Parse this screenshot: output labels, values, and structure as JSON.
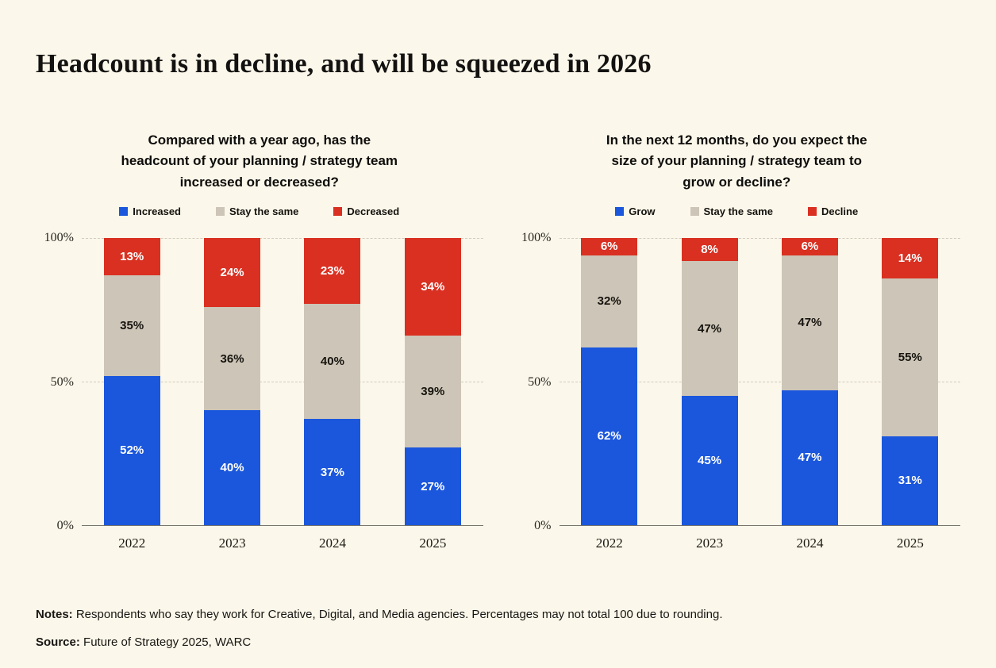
{
  "page": {
    "title": "Headcount is in decline, and will be squeezed in 2026",
    "notes_label": "Notes:",
    "notes_text": "Respondents who say they work for Creative, Digital, and Media agencies. Percentages may not total 100 due to rounding.",
    "source_label": "Source:",
    "source_text": "Future of Strategy 2025, WARC"
  },
  "colors": {
    "background": "#fbf7ea",
    "blue": "#1b57dd",
    "gray": "#cdc5b7",
    "red": "#d93021",
    "grid": "#d2ccbe",
    "baseline": "#76736a"
  },
  "chart_data": [
    {
      "type": "bar",
      "stacked": true,
      "title": "Compared with a year ago, has the headcount of your planning / strategy team increased or decreased?",
      "title_lines": [
        "Compared with a year ago, has the",
        "headcount of your planning / strategy team",
        "increased or decreased?"
      ],
      "categories": [
        "2022",
        "2023",
        "2024",
        "2025"
      ],
      "series": [
        {
          "name": "Increased",
          "color_key": "blue",
          "values": [
            52,
            40,
            37,
            27
          ]
        },
        {
          "name": "Stay the same",
          "color_key": "gray",
          "values": [
            35,
            36,
            40,
            39
          ]
        },
        {
          "name": "Decreased",
          "color_key": "red",
          "values": [
            13,
            24,
            23,
            34
          ]
        }
      ],
      "ylim": [
        0,
        100
      ],
      "yticks": [
        "0%",
        "50%",
        "100%"
      ],
      "legend_position": "top",
      "grid": "dashed horizontal at 50% and 100%"
    },
    {
      "type": "bar",
      "stacked": true,
      "title": "In the next 12 months, do you expect the size of your planning / strategy team to grow or decline?",
      "title_lines": [
        "In the next 12 months, do you expect the",
        "size of your planning / strategy team to",
        "grow or decline?"
      ],
      "categories": [
        "2022",
        "2023",
        "2024",
        "2025"
      ],
      "series": [
        {
          "name": "Grow",
          "color_key": "blue",
          "values": [
            62,
            45,
            47,
            31
          ]
        },
        {
          "name": "Stay the same",
          "color_key": "gray",
          "values": [
            32,
            47,
            47,
            55
          ]
        },
        {
          "name": "Decline",
          "color_key": "red",
          "values": [
            6,
            8,
            6,
            14
          ]
        }
      ],
      "ylim": [
        0,
        100
      ],
      "yticks": [
        "0%",
        "50%",
        "100%"
      ],
      "legend_position": "top",
      "grid": "dashed horizontal at 50% and 100%"
    }
  ]
}
